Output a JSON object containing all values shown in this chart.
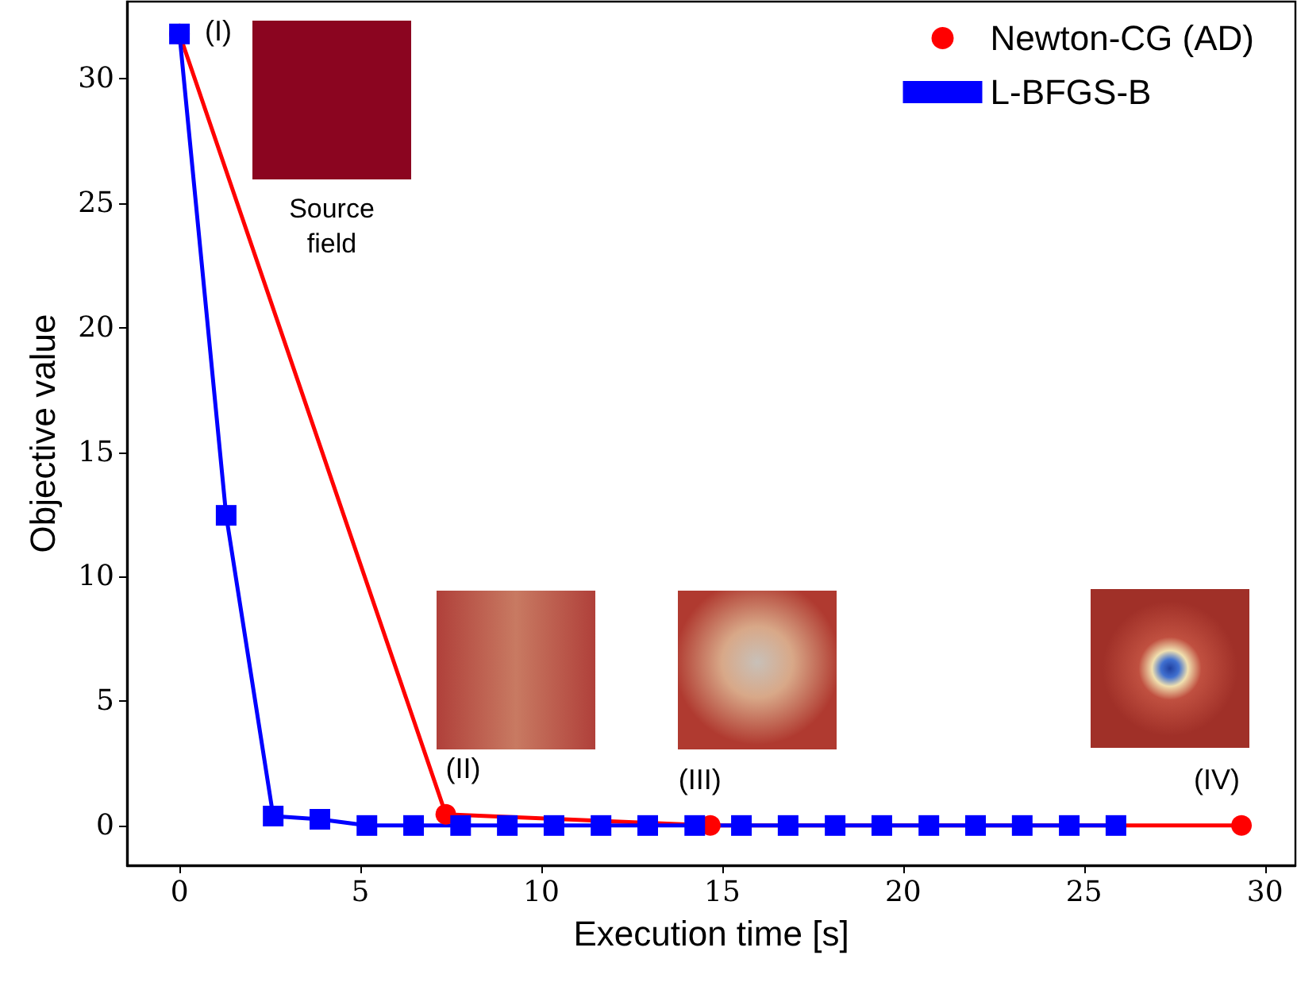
{
  "chart_data": {
    "type": "line",
    "xlabel": "Execution time [s]",
    "ylabel": "Objective value",
    "xlim": [
      -1.45,
      30.84
    ],
    "xticks": [
      0,
      5,
      10,
      15,
      20,
      25,
      30
    ],
    "ylim": [
      -1.6,
      33.1
    ],
    "yticks": [
      0,
      5,
      10,
      15,
      20,
      25,
      30
    ],
    "grid": false,
    "legend": "top right",
    "line_style": "solid",
    "series": [
      {
        "name": "Newton-CG (AD)",
        "color": "#ff0000",
        "marker": "circle",
        "x": [
          0,
          7.36,
          14.67,
          29.35
        ],
        "values": [
          31.8,
          0.45,
          0,
          0
        ]
      },
      {
        "name": "L-BFGS-B",
        "color": "#0000ff",
        "marker": "square",
        "x": [
          0,
          1.29,
          2.59,
          3.88,
          5.18,
          6.47,
          7.77,
          9.06,
          10.35,
          11.65,
          12.94,
          14.24,
          15.53,
          16.82,
          18.12,
          19.41,
          20.71,
          22.0,
          23.29,
          24.59,
          25.88
        ],
        "values": [
          31.8,
          12.46,
          0.38,
          0.25,
          0,
          0,
          0,
          0,
          0,
          0,
          0,
          0,
          0,
          0,
          0,
          0,
          0,
          0,
          0,
          0,
          0
        ]
      }
    ],
    "annotations": [
      {
        "text": "(I)",
        "x": 0,
        "y": 31.8
      },
      {
        "text": "(II)",
        "x": 7.36,
        "y": 0.45
      },
      {
        "text": "(III)",
        "x": 14.67,
        "y": 0
      },
      {
        "text": "(IV)",
        "x": 29.35,
        "y": 0
      },
      "Source field"
    ]
  }
}
